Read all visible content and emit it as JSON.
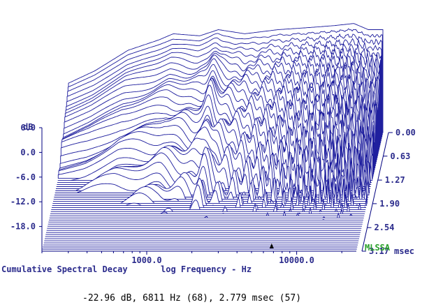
{
  "chart_data": {
    "type": "waterfall",
    "title": "Cumulative Spectral Decay",
    "xlabel": "log Frequency - Hz",
    "ylabel": "dB",
    "zlabel": "msec",
    "x_scale": "log",
    "xlim": [
      200,
      25000
    ],
    "ylim": [
      -24,
      6
    ],
    "zlim": [
      0,
      3.17
    ],
    "x_ticks": [
      {
        "value": 1000,
        "label": "1000.0"
      },
      {
        "value": 10000,
        "label": "10000.0"
      }
    ],
    "y_ticks": [
      {
        "value": 6,
        "label": "6.0"
      },
      {
        "value": 0,
        "label": "0.0"
      },
      {
        "value": -6,
        "label": "-6.0"
      },
      {
        "value": -12,
        "label": "-12.0"
      },
      {
        "value": -18,
        "label": "-18.0"
      }
    ],
    "z_ticks": [
      {
        "value": 0,
        "label": "0.00"
      },
      {
        "value": 0.63,
        "label": "0.63"
      },
      {
        "value": 1.27,
        "label": "1.27"
      },
      {
        "value": 1.9,
        "label": "1.90"
      },
      {
        "value": 2.54,
        "label": "2.54"
      },
      {
        "value": 3.17,
        "label": "3.17 msec"
      }
    ],
    "slice_count": 58,
    "base_response": {
      "freq_hz": [
        200,
        300,
        500,
        800,
        1000,
        1500,
        2000,
        3000,
        5000,
        8000,
        12000,
        16000,
        20000
      ],
      "level_db": [
        -12,
        -9,
        -4,
        -1.5,
        0,
        -0.5,
        1,
        0,
        1,
        1.5,
        2,
        2.5,
        1
      ]
    },
    "marker": {
      "level_db": -22.96,
      "freq_hz": 6811,
      "freq_bin": 68,
      "time_ms": 2.779,
      "slice": 57
    }
  },
  "labels": {
    "y_axis_unit": "dB",
    "bottom_title": "Cumulative Spectral Decay",
    "bottom_axis": "log Frequency - Hz",
    "brand": "MLSSA",
    "cursor_readout": "-22.96 dB, 6811 Hz (68), 2.779 msec (57)"
  },
  "colors": {
    "trace": "#1a1a9c",
    "axis": "#000080",
    "brand": "#2aa02a",
    "background": "#ffffff"
  }
}
